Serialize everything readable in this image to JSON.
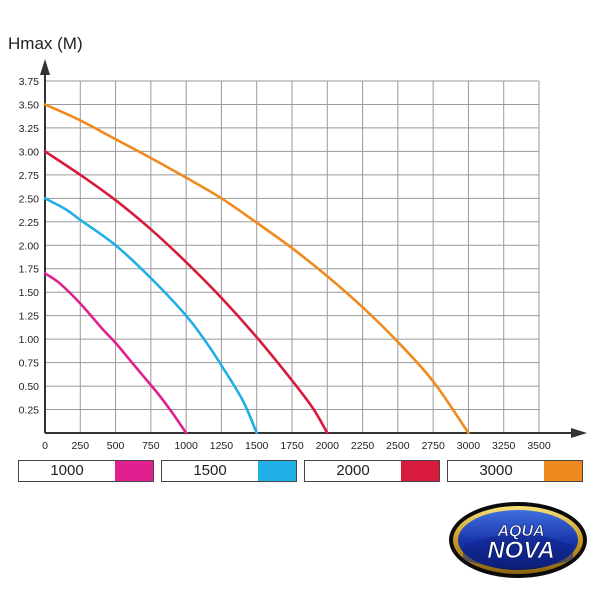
{
  "chart_data": {
    "type": "line",
    "ylabel": "Hmax (M)",
    "xlabel": "",
    "xlim": [
      0,
      3500
    ],
    "ylim": [
      0,
      3.75
    ],
    "x_ticks": [
      0,
      250,
      500,
      750,
      1000,
      1250,
      1500,
      1750,
      2000,
      2250,
      2500,
      2750,
      3000,
      3250,
      3500
    ],
    "y_ticks": [
      0.25,
      0.5,
      0.75,
      1.0,
      1.25,
      1.5,
      1.75,
      2.0,
      2.25,
      2.5,
      2.75,
      3.0,
      3.25,
      3.5,
      3.75
    ],
    "x_tick_labels": [
      "0",
      "250",
      "500",
      "750",
      "1000",
      "1250",
      "1500",
      "1750",
      "2000",
      "2250",
      "2500",
      "2750",
      "3000",
      "3250",
      "3500"
    ],
    "y_tick_labels": [
      "0.25",
      "0.50",
      "0.75",
      "1.00",
      "1.25",
      "1.50",
      "1.75",
      "2.00",
      "2.25",
      "2.50",
      "2.75",
      "3.00",
      "3.25",
      "3.50",
      "3.75"
    ],
    "grid": true,
    "legend_placement": "bottom",
    "series": [
      {
        "name": "1000",
        "color": "#e0208e",
        "points": [
          [
            0,
            1.7
          ],
          [
            100,
            1.6
          ],
          [
            250,
            1.38
          ],
          [
            400,
            1.12
          ],
          [
            500,
            0.96
          ],
          [
            600,
            0.78
          ],
          [
            700,
            0.6
          ],
          [
            800,
            0.42
          ],
          [
            900,
            0.22
          ],
          [
            1000,
            0.0
          ]
        ]
      },
      {
        "name": "1500",
        "color": "#22aee6",
        "points": [
          [
            0,
            2.5
          ],
          [
            150,
            2.38
          ],
          [
            250,
            2.27
          ],
          [
            500,
            2.0
          ],
          [
            750,
            1.65
          ],
          [
            1000,
            1.25
          ],
          [
            1150,
            0.95
          ],
          [
            1250,
            0.72
          ],
          [
            1400,
            0.35
          ],
          [
            1500,
            0.0
          ]
        ]
      },
      {
        "name": "2000",
        "color": "#d81b3c",
        "points": [
          [
            0,
            3.0
          ],
          [
            250,
            2.75
          ],
          [
            500,
            2.48
          ],
          [
            750,
            2.17
          ],
          [
            1000,
            1.82
          ],
          [
            1250,
            1.44
          ],
          [
            1500,
            1.02
          ],
          [
            1750,
            0.56
          ],
          [
            1900,
            0.26
          ],
          [
            2000,
            0.0
          ]
        ]
      },
      {
        "name": "3000",
        "color": "#f08a1e",
        "points": [
          [
            0,
            3.5
          ],
          [
            250,
            3.33
          ],
          [
            500,
            3.13
          ],
          [
            750,
            2.93
          ],
          [
            1000,
            2.72
          ],
          [
            1250,
            2.5
          ],
          [
            1500,
            2.24
          ],
          [
            1750,
            1.97
          ],
          [
            2000,
            1.67
          ],
          [
            2250,
            1.34
          ],
          [
            2500,
            0.97
          ],
          [
            2750,
            0.55
          ],
          [
            3000,
            0.0
          ]
        ]
      }
    ]
  },
  "legend": [
    {
      "label": "1000",
      "color": "#e0208e"
    },
    {
      "label": "1500",
      "color": "#22aee6"
    },
    {
      "label": "2000",
      "color": "#d81b3c"
    },
    {
      "label": "3000",
      "color": "#f08a1e"
    }
  ],
  "logo": {
    "line1": "AQUA",
    "line2": "NOVA"
  }
}
